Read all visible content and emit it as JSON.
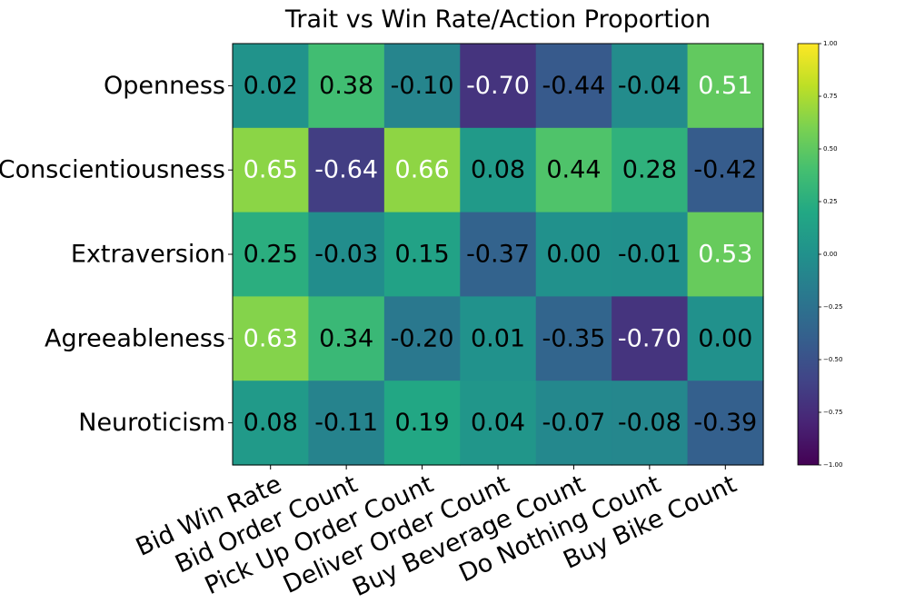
{
  "chart_data": {
    "type": "heatmap",
    "title": "Trait vs Win Rate/Action Proportion",
    "rows": [
      "Openness",
      "Conscientiousness",
      "Extraversion",
      "Agreeableness",
      "Neuroticism"
    ],
    "columns": [
      "Bid Win Rate",
      "Bid Order Count",
      "Pick Up Order Count",
      "Deliver Order Count",
      "Buy Beverage Count",
      "Do Nothing Count",
      "Buy Bike Count"
    ],
    "values": [
      [
        0.02,
        0.38,
        -0.1,
        -0.7,
        -0.44,
        -0.04,
        0.51
      ],
      [
        0.65,
        -0.64,
        0.66,
        0.08,
        0.44,
        0.28,
        -0.42
      ],
      [
        0.25,
        -0.03,
        0.15,
        -0.37,
        0.0,
        -0.01,
        0.53
      ],
      [
        0.63,
        0.34,
        -0.2,
        0.01,
        -0.35,
        -0.7,
        0.0
      ],
      [
        0.08,
        -0.11,
        0.19,
        0.04,
        -0.07,
        -0.08,
        -0.39
      ]
    ],
    "labels": [
      [
        "0.02",
        "0.38",
        "-0.10",
        "-0.70",
        "-0.44",
        "-0.04",
        "0.51"
      ],
      [
        "0.65",
        "-0.64",
        "0.66",
        "0.08",
        "0.44",
        "0.28",
        "-0.42"
      ],
      [
        "0.25",
        "-0.03",
        "0.15",
        "-0.37",
        "0.00",
        "-0.01",
        "0.53"
      ],
      [
        "0.63",
        "0.34",
        "-0.20",
        "0.01",
        "-0.35",
        "-0.70",
        "0.00"
      ],
      [
        "0.08",
        "-0.11",
        "0.19",
        "0.04",
        "-0.07",
        "-0.08",
        "-0.39"
      ]
    ],
    "colormap": "viridis",
    "vmin": -1.0,
    "vmax": 1.0,
    "colorbar_ticks": [
      1.0,
      0.75,
      0.5,
      0.25,
      0.0,
      -0.25,
      -0.5,
      -0.75,
      -1.0
    ],
    "colorbar_tick_labels": [
      "1.00",
      "0.75",
      "0.50",
      "0.25",
      "0.00",
      "−0.25",
      "−0.50",
      "−0.75",
      "−1.00"
    ],
    "grid": false,
    "colorbar_position": "right"
  }
}
